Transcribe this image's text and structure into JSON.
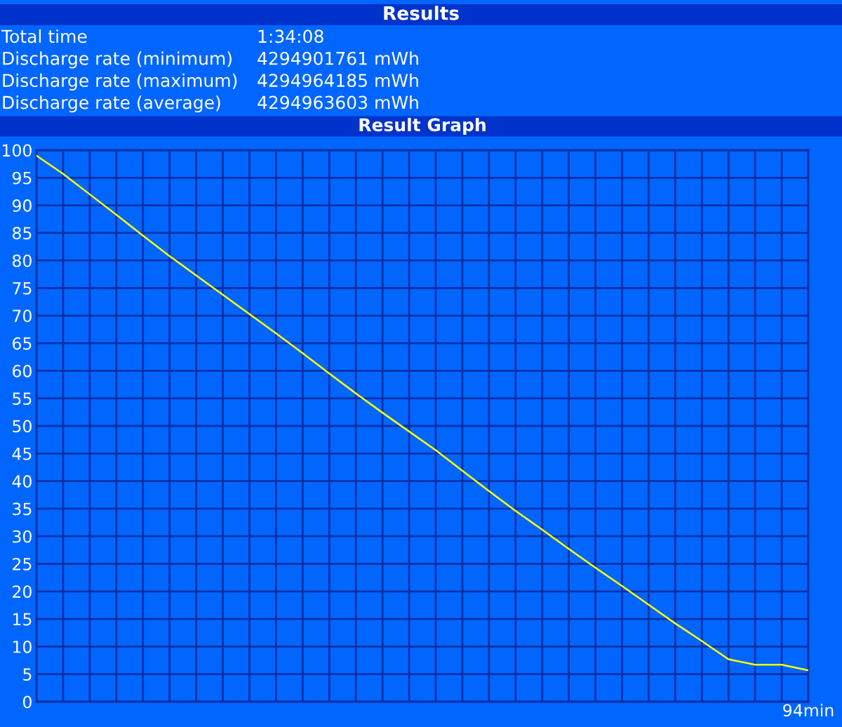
{
  "chart_data": [
    {
      "type": "other",
      "title": "Results",
      "annotations": [
        "Total time",
        "1:34:08",
        "Discharge rate (minimum)",
        "4294901761 mWh",
        "Discharge rate (maximum)",
        "4294964185 mWh",
        "Discharge rate (average)",
        "4294963603 mWh"
      ]
    },
    {
      "type": "line",
      "title": "Result Graph",
      "categories": [
        null,
        null,
        null,
        null,
        null,
        null,
        null,
        null,
        null,
        null,
        null,
        null,
        null,
        null,
        null,
        null,
        null,
        null,
        null,
        null,
        null,
        null,
        null,
        null,
        null,
        null,
        null,
        null,
        null,
        "94min"
      ],
      "series": [
        {
          "color": "#ffff00",
          "values": [
            99,
            95.7,
            92.0,
            88.3,
            84.5,
            80.8,
            77.3,
            73.8,
            70.3,
            66.8,
            63.2,
            59.5,
            55.9,
            52.4,
            49.0,
            45.6,
            41.9,
            38.2,
            34.6,
            31.2,
            27.7,
            24.3,
            21.0,
            17.6,
            14.2,
            11.0,
            7.7,
            6.7,
            6.7,
            5.7
          ]
        }
      ],
      "ylim": [
        0,
        100
      ],
      "yticks": [
        0,
        5,
        10,
        15,
        20,
        25,
        30,
        35,
        40,
        45,
        50,
        55,
        60,
        65,
        70,
        75,
        80,
        85,
        90,
        95,
        100
      ],
      "grid": true
    }
  ]
}
